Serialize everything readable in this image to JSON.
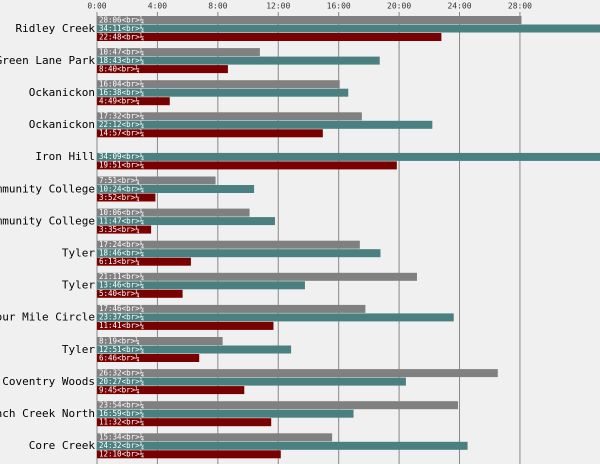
{
  "chart_data": {
    "type": "hbar",
    "categories": [
      "Ridley Creek",
      "Green Lane Park",
      "Ockanickon",
      "Ockanickon",
      "Iron Hill",
      "ommunity College",
      "ommunity College",
      "Tyler",
      "Tyler",
      "Four Mile Circle",
      "Tyler",
      "Coventry Woods",
      "ench Creek North",
      "Core Creek"
    ],
    "series": [
      {
        "color": "#808080",
        "values": [
          28.1,
          10.783,
          16.067,
          17.533,
          null,
          7.85,
          10.1,
          17.4,
          21.183,
          17.767,
          8.317,
          26.533,
          23.9,
          15.567
        ],
        "value_labels": [
          "28:06<br>¼",
          "10:47<br>¼",
          "16:04<br>¼",
          "17:32<br>¼",
          null,
          "7:51<br>¼",
          "10:06<br>¼",
          "17:24<br>¼",
          "21:11<br>¼",
          "17:46<br>¼",
          "8:19<br>¼",
          "26:32<br>¼",
          "23:54<br>¼",
          "15:34<br>¼"
        ]
      },
      {
        "color": "#4a8080",
        "values": [
          34.183,
          18.717,
          16.633,
          22.2,
          34.15,
          10.4,
          11.783,
          18.767,
          13.767,
          23.617,
          12.85,
          20.45,
          16.983,
          24.533
        ],
        "value_labels": [
          "34:11<br>¼",
          "18:43<br>¼",
          "16:38<br>¼",
          "22:12<br>¼",
          "34:09<br>¼",
          "10:24<br>¼",
          "11:47<br>¼",
          "18:46<br>¼",
          "13:46<br>¼",
          "23:37<br>¼",
          "12:51<br>¼",
          "20:27<br>¼",
          "16:59<br>¼",
          "24:32<br>¼"
        ]
      },
      {
        "color": "#780000",
        "values": [
          22.8,
          8.667,
          4.817,
          14.95,
          19.85,
          3.867,
          3.583,
          6.217,
          5.667,
          11.683,
          6.767,
          9.75,
          11.533,
          12.167
        ],
        "value_labels": [
          "22:48<br>¼",
          "8:40<br>¼",
          "4:49<br>¼",
          "14:57<br>¼",
          "19:51<br>¼",
          "3:52<br>¼",
          "3:35<br>¼",
          "6:13<br>¼",
          "5:40<br>¼",
          "11:41<br>¼",
          "6:46<br>¼",
          "9:45<br>¼",
          "11:32<br>¼",
          "12:10<br>¼"
        ]
      }
    ],
    "xlim": [
      0,
      33.3
    ],
    "xticks": [
      {
        "value": 0,
        "label": "0:00"
      },
      {
        "value": 4,
        "label": "4:00"
      },
      {
        "value": 8,
        "label": "8:00"
      },
      {
        "value": 12,
        "label": "12:00"
      },
      {
        "value": 16,
        "label": "16:00"
      },
      {
        "value": 20,
        "label": "20:00"
      },
      {
        "value": 24,
        "label": "24:00"
      },
      {
        "value": 28,
        "label": "28:00"
      }
    ],
    "grid": true
  }
}
